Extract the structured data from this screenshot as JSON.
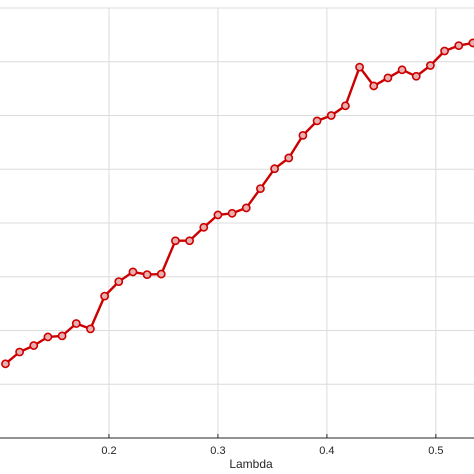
{
  "chart_data": {
    "type": "line",
    "title": "",
    "xlabel": "Lambda",
    "ylabel": "",
    "xlim": [
      0.1,
      0.535
    ],
    "ylim": [
      0,
      8
    ],
    "x_ticks": [
      0.2,
      0.3,
      0.4,
      0.5
    ],
    "x_tick_labels": [
      "0.2",
      "0.3",
      "0.4",
      "0.5"
    ],
    "y_gridlines": [
      0,
      1,
      2,
      3,
      4,
      5,
      6,
      7,
      8
    ],
    "grid": true,
    "color": "#cc0000",
    "series": [
      {
        "name": "",
        "marker": "circle",
        "x": [
          0.105,
          0.118,
          0.131,
          0.144,
          0.157,
          0.17,
          0.183,
          0.196,
          0.209,
          0.222,
          0.235,
          0.248,
          0.261,
          0.274,
          0.287,
          0.3,
          0.313,
          0.326,
          0.339,
          0.352,
          0.365,
          0.378,
          0.391,
          0.404,
          0.417,
          0.43,
          0.443,
          0.456,
          0.469,
          0.482,
          0.495,
          0.508,
          0.521,
          0.534
        ],
        "y": [
          1.38,
          1.6,
          1.72,
          1.88,
          1.9,
          2.13,
          2.03,
          2.64,
          2.91,
          3.09,
          3.04,
          3.05,
          3.67,
          3.67,
          3.92,
          4.15,
          4.18,
          4.28,
          4.64,
          5.01,
          5.21,
          5.63,
          5.9,
          6.0,
          6.18,
          6.9,
          6.55,
          6.7,
          6.85,
          6.73,
          6.93,
          7.2,
          7.3,
          7.35
        ]
      }
    ]
  }
}
